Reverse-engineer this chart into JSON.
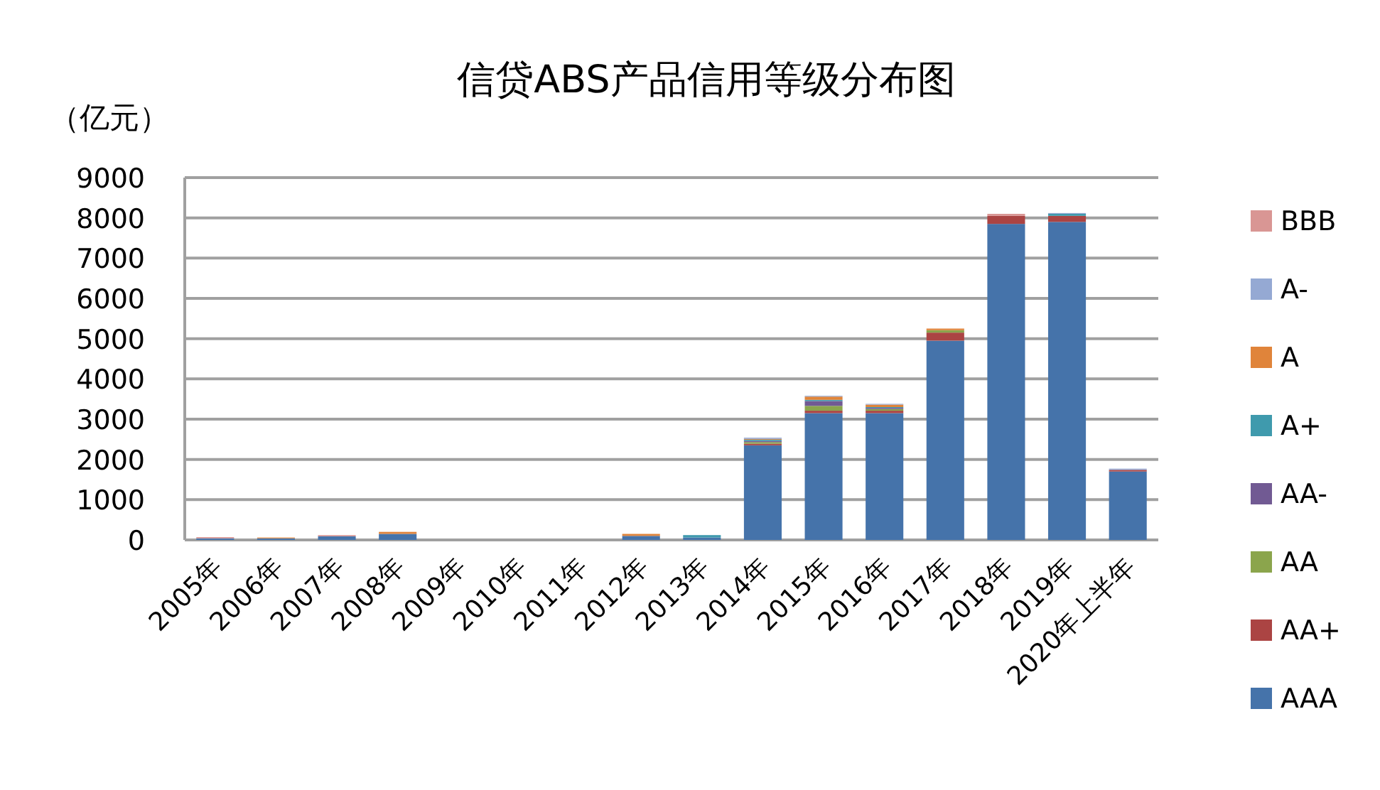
{
  "chart_data": {
    "type": "bar",
    "stacked": true,
    "title": "信贷ABS产品信用等级分布图",
    "ylabel": "（亿元）",
    "categories": [
      "2005年",
      "2006年",
      "2007年",
      "2008年",
      "2009年",
      "2010年",
      "2011年",
      "2012年",
      "2013年",
      "2014年",
      "2015年",
      "2016年",
      "2017年",
      "2018年",
      "2019年",
      "2020年上半年"
    ],
    "ylim": [
      0,
      9000
    ],
    "yticks": [
      0,
      1000,
      2000,
      3000,
      4000,
      5000,
      6000,
      7000,
      8000,
      9000
    ],
    "grid": "y",
    "legend": "right",
    "series": [
      {
        "name": "AAA",
        "color": "#4573aa",
        "values": [
          40,
          40,
          90,
          150,
          null,
          null,
          null,
          100,
          60,
          2350,
          3150,
          3150,
          4950,
          7850,
          7900,
          1700
        ]
      },
      {
        "name": "AA+",
        "color": "#ab4443",
        "values": [
          0,
          0,
          0,
          0,
          null,
          null,
          null,
          0,
          0,
          40,
          60,
          60,
          200,
          200,
          150,
          40
        ]
      },
      {
        "name": "AA",
        "color": "#8ba54c",
        "values": [
          0,
          0,
          0,
          0,
          null,
          null,
          null,
          0,
          0,
          40,
          120,
          40,
          60,
          0,
          0,
          0
        ]
      },
      {
        "name": "AA-",
        "color": "#715a93",
        "values": [
          0,
          0,
          0,
          0,
          null,
          null,
          null,
          0,
          0,
          30,
          120,
          30,
          0,
          0,
          0,
          0
        ]
      },
      {
        "name": "A+",
        "color": "#3f9aad",
        "values": [
          0,
          0,
          0,
          0,
          null,
          null,
          null,
          0,
          60,
          30,
          30,
          20,
          0,
          0,
          50,
          0
        ]
      },
      {
        "name": "A",
        "color": "#e0843a",
        "values": [
          0,
          20,
          0,
          50,
          null,
          null,
          null,
          50,
          0,
          20,
          80,
          60,
          40,
          0,
          0,
          0
        ]
      },
      {
        "name": "A-",
        "color": "#95a9d3",
        "values": [
          0,
          0,
          0,
          0,
          null,
          null,
          null,
          0,
          0,
          30,
          20,
          20,
          0,
          0,
          20,
          30
        ]
      },
      {
        "name": "BBB",
        "color": "#d99694",
        "values": [
          30,
          0,
          30,
          0,
          null,
          null,
          null,
          0,
          0,
          0,
          0,
          0,
          0,
          50,
          0,
          0
        ]
      }
    ]
  }
}
